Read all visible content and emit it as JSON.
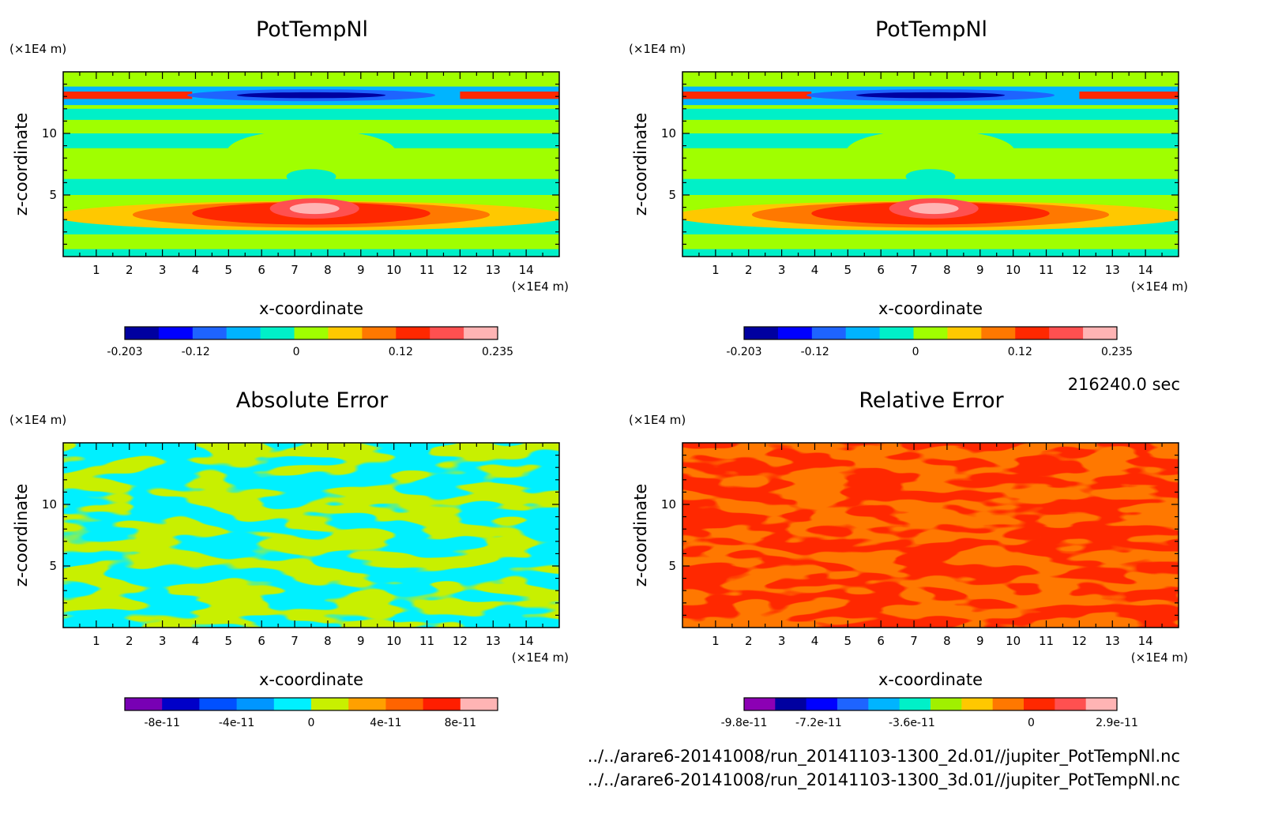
{
  "chart_data": [
    {
      "type": "heatmap",
      "title": "PotTempNl",
      "xlabel": "x-coordinate",
      "ylabel": "z-coordinate",
      "x_unit": "(×1E4 m)",
      "y_unit": "(×1E4 m)",
      "xlim": [
        0,
        15
      ],
      "ylim": [
        0,
        15
      ],
      "x_ticks": [
        "1",
        "2",
        "3",
        "4",
        "5",
        "6",
        "7",
        "8",
        "9",
        "10",
        "11",
        "12",
        "13",
        "14"
      ],
      "y_ticks": [
        "5",
        "10"
      ],
      "colorbar": {
        "labels": [
          "-0.203",
          "-0.12",
          "0",
          "0.12",
          "0.235"
        ],
        "colors": [
          "#0000a0",
          "#0000ff",
          "#1e64ff",
          "#00b4ff",
          "#00f0c8",
          "#a0ff00",
          "#ffc800",
          "#ff7800",
          "#ff2800",
          "#ff5050",
          "#ffb4b4"
        ]
      }
    },
    {
      "type": "heatmap",
      "title": "PotTempNl",
      "xlabel": "x-coordinate",
      "ylabel": "z-coordinate",
      "x_unit": "(×1E4 m)",
      "y_unit": "(×1E4 m)",
      "xlim": [
        0,
        15
      ],
      "ylim": [
        0,
        15
      ],
      "x_ticks": [
        "1",
        "2",
        "3",
        "4",
        "5",
        "6",
        "7",
        "8",
        "9",
        "10",
        "11",
        "12",
        "13",
        "14"
      ],
      "y_ticks": [
        "5",
        "10"
      ],
      "colorbar": {
        "labels": [
          "-0.203",
          "-0.12",
          "0",
          "0.12",
          "0.235"
        ],
        "colors": [
          "#0000a0",
          "#0000ff",
          "#1e64ff",
          "#00b4ff",
          "#00f0c8",
          "#a0ff00",
          "#ffc800",
          "#ff7800",
          "#ff2800",
          "#ff5050",
          "#ffb4b4"
        ]
      }
    },
    {
      "type": "heatmap",
      "title": "Absolute Error",
      "xlabel": "x-coordinate",
      "ylabel": "z-coordinate",
      "x_unit": "(×1E4 m)",
      "y_unit": "(×1E4 m)",
      "xlim": [
        0,
        15
      ],
      "ylim": [
        0,
        15
      ],
      "x_ticks": [
        "1",
        "2",
        "3",
        "4",
        "5",
        "6",
        "7",
        "8",
        "9",
        "10",
        "11",
        "12",
        "13",
        "14"
      ],
      "y_ticks": [
        "5",
        "10"
      ],
      "colorbar": {
        "labels": [
          "-8e-11",
          "-4e-11",
          "0",
          "4e-11",
          "8e-11"
        ],
        "colors": [
          "#7800b4",
          "#0000c8",
          "#0050ff",
          "#0096ff",
          "#00f0ff",
          "#c8f000",
          "#ffa000",
          "#ff6400",
          "#ff1e00",
          "#ffb4b4"
        ]
      }
    },
    {
      "type": "heatmap",
      "title": "Relative Error",
      "xlabel": "x-coordinate",
      "ylabel": "z-coordinate",
      "x_unit": "(×1E4 m)",
      "y_unit": "(×1E4 m)",
      "xlim": [
        0,
        15
      ],
      "ylim": [
        0,
        15
      ],
      "x_ticks": [
        "1",
        "2",
        "3",
        "4",
        "5",
        "6",
        "7",
        "8",
        "9",
        "10",
        "11",
        "12",
        "13",
        "14"
      ],
      "y_ticks": [
        "5",
        "10"
      ],
      "colorbar": {
        "labels": [
          "-9.8e-11",
          "-7.2e-11",
          "-3.6e-11",
          "0",
          "2.9e-11"
        ],
        "colors": [
          "#8c00b4",
          "#0000a0",
          "#0000ff",
          "#1e64ff",
          "#00b4ff",
          "#00f0c8",
          "#a0f000",
          "#ffc800",
          "#ff7800",
          "#ff2800",
          "#ff5050",
          "#ffb4b4"
        ]
      }
    }
  ],
  "time_label": "216240.0 sec",
  "file_paths": [
    "../../arare6-20141008/run_20141103-1300_2d.01//jupiter_PotTempNl.nc",
    "../../arare6-20141008/run_20141103-1300_3d.01//jupiter_PotTempNl.nc"
  ]
}
